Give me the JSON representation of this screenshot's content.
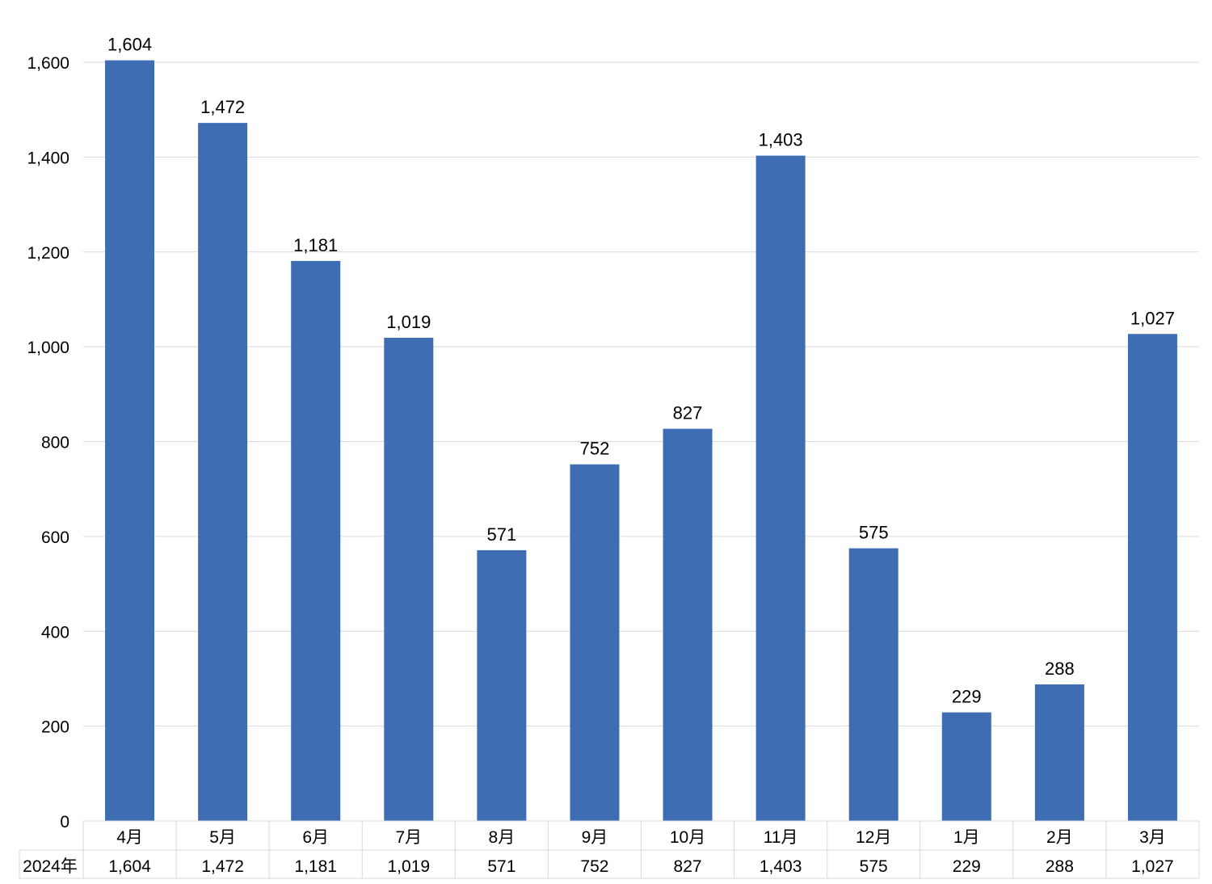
{
  "chart_data": {
    "type": "bar",
    "categories": [
      "4月",
      "5月",
      "6月",
      "7月",
      "8月",
      "9月",
      "10月",
      "11月",
      "12月",
      "1月",
      "2月",
      "3月"
    ],
    "series": [
      {
        "name": "2024年",
        "values": [
          1604,
          1472,
          1181,
          1019,
          571,
          752,
          827,
          1403,
          575,
          229,
          288,
          1027
        ]
      }
    ],
    "value_labels": [
      "1,604",
      "1,472",
      "1,181",
      "1,019",
      "571",
      "752",
      "827",
      "1,403",
      "575",
      "229",
      "288",
      "1,027"
    ],
    "y_tick_labels": [
      "0",
      "200",
      "400",
      "600",
      "800",
      "1,000",
      "1,200",
      "1,400",
      "1,600"
    ],
    "ylim": [
      0,
      1600
    ],
    "grid": true,
    "legend": "data-table-below",
    "colors": {
      "bar": "#3F6DB3",
      "grid": "#D9D9D9"
    }
  }
}
